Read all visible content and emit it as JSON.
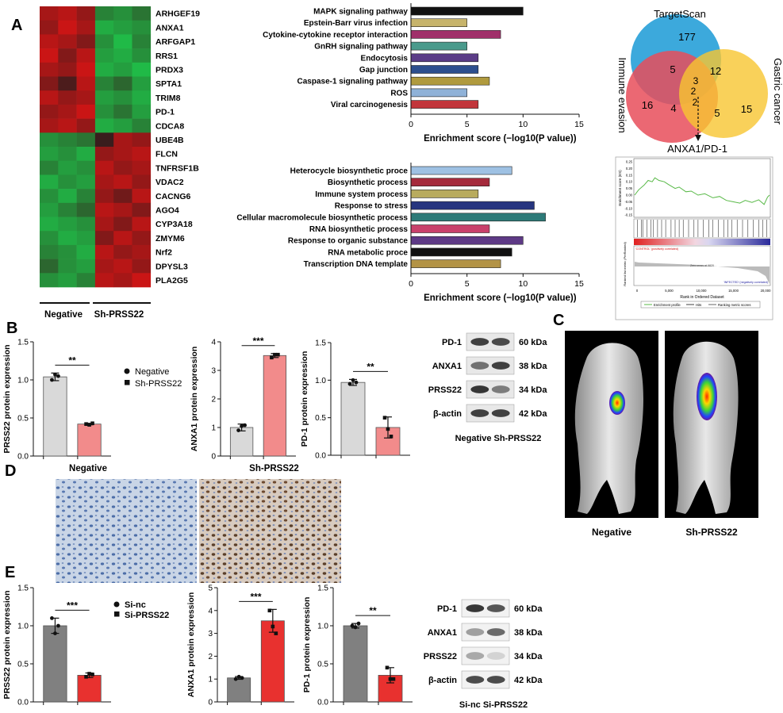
{
  "panel_letters": {
    "a": "A",
    "b": "B",
    "c": "C",
    "d": "D",
    "e": "E"
  },
  "colors": {
    "heat_red": "#d1242f",
    "heat_green": "#2e9e47",
    "venn_blue": "#1a9ad6",
    "venn_red": "#e84e5a",
    "venn_yellow": "#f7c531",
    "gsea_green": "#58b947",
    "bar_gray": "#d9d9d9",
    "bar_pink": "#f28b8b",
    "bar_dgray": "#808080",
    "bar_red": "#e8312f"
  },
  "heatmap": {
    "genes": [
      "ARHGEF19",
      "ANXA1",
      "ARFGAP1",
      "RRS1",
      "PRDX3",
      "SPTA1",
      "TRIM8",
      "PD-1",
      "CDCA8",
      "UBE4B",
      "FLCN",
      "TNFRSF1B",
      "VDAC2",
      "CACNG6",
      "AGO4",
      "CYP3A18",
      "ZMYM6",
      "Nrf2",
      "DPYSL3",
      "PLA2G5"
    ],
    "group_negative": "Negative",
    "group_sh": "Sh-PRSS22",
    "values": [
      [
        0.7,
        0.8,
        0.6,
        -0.5,
        -0.6,
        -0.4
      ],
      [
        0.6,
        0.9,
        0.7,
        -0.8,
        -0.7,
        -0.6
      ],
      [
        0.8,
        0.7,
        0.5,
        -0.6,
        -0.9,
        -0.5
      ],
      [
        0.9,
        0.5,
        0.8,
        -0.7,
        -0.8,
        -0.6
      ],
      [
        0.7,
        0.6,
        0.9,
        -0.8,
        -0.7,
        -0.9
      ],
      [
        0.5,
        0.2,
        0.8,
        -0.5,
        -0.3,
        -0.7
      ],
      [
        0.8,
        0.6,
        0.7,
        -0.7,
        -0.6,
        -0.8
      ],
      [
        0.6,
        0.7,
        0.9,
        -0.6,
        -0.4,
        -0.7
      ],
      [
        0.7,
        0.8,
        0.6,
        -0.8,
        -0.7,
        -0.5
      ],
      [
        -0.6,
        -0.5,
        -0.4,
        0.1,
        0.7,
        0.6
      ],
      [
        -0.7,
        -0.6,
        -0.8,
        0.6,
        0.7,
        0.8
      ],
      [
        -0.5,
        -0.7,
        -0.6,
        0.8,
        0.6,
        0.7
      ],
      [
        -0.8,
        -0.6,
        -0.7,
        0.7,
        0.8,
        0.6
      ],
      [
        -0.6,
        -0.8,
        -0.5,
        0.6,
        0.4,
        0.8
      ],
      [
        -0.7,
        -0.5,
        -0.3,
        0.8,
        0.7,
        0.5
      ],
      [
        -0.8,
        -0.7,
        -0.6,
        0.7,
        0.5,
        0.8
      ],
      [
        -0.6,
        -0.8,
        -0.7,
        0.5,
        0.8,
        0.6
      ],
      [
        -0.5,
        -0.6,
        -0.8,
        0.8,
        0.6,
        0.7
      ],
      [
        -0.3,
        -0.6,
        -0.7,
        0.7,
        0.8,
        0.6
      ],
      [
        -0.6,
        -0.7,
        -0.5,
        0.8,
        0.7,
        0.9
      ]
    ]
  },
  "venn": {
    "sets": [
      "TargetScan",
      "Immune evasion",
      "Gastric cancer"
    ],
    "counts": {
      "targetscan_only": "177",
      "immune_only_a": "16",
      "immune_only_b": "4",
      "gastric_only_a": "5",
      "gastric_only_b": "15",
      "ts_immune": "5",
      "ts_gastric": "12",
      "center_a": "3",
      "center_b": "2",
      "center_c": "2"
    },
    "result": "ANXA1/PD-1"
  },
  "gsea": {
    "ylabel": "Enrichment score (ES)",
    "yticks": [
      "0.25",
      "0.20",
      "0.15",
      "0.10",
      "0.05",
      "0.00",
      "-0.05",
      "-0.10",
      "-0.15"
    ],
    "rank_ylabel": "Ranked list metric (PreRanked)",
    "pos_label": "'CONTROL' (positively correlated)",
    "neg_label": "'INFECTED' (negatively correlated)",
    "zero_cross": "Zero cross at 9820",
    "xticks": [
      "0",
      "5,000",
      "10,000",
      "15,000",
      "20,000"
    ],
    "xlabel": "Rank in Ordered Dataset",
    "legend": [
      "Enrichment profile",
      "Hits",
      "Ranking metric scores"
    ]
  },
  "chart_data": [
    {
      "id": "kegg",
      "type": "bar",
      "orientation": "horizontal",
      "categories": [
        "MAPK signaling pathway",
        "Epstein-Barr virus infection",
        "Cytokine-cytokine receptor interaction",
        "GnRH signaling pathway",
        "Endocytosis",
        "Gap junction",
        "Caspase-1 signaling pathway",
        "ROS",
        "Viral carcinogenesis"
      ],
      "values": [
        10,
        5,
        8,
        5,
        6,
        6,
        7,
        5,
        6
      ],
      "colors": [
        "#111111",
        "#c7b46b",
        "#a0306a",
        "#4a9a8c",
        "#5b3c87",
        "#2d4f8e",
        "#b09a3e",
        "#8fb2d8",
        "#c2353b"
      ],
      "xlabel": "Enrichment score (−log10(P value))",
      "xlim": [
        0,
        15
      ],
      "xticks": [
        "0",
        "5",
        "10",
        "15"
      ]
    },
    {
      "id": "go",
      "type": "bar",
      "orientation": "horizontal",
      "categories": [
        "Heterocycle biosynthetic proce",
        "Biosynthetic process",
        "Immune system process",
        "Response to stress",
        "Cellular macromolecule biosynthetic process",
        "RNA biosynthetic process",
        "Response to organic substance",
        "RNA metabolic proce",
        "Transcription DNA template"
      ],
      "values": [
        9,
        7,
        6,
        11,
        12,
        7,
        10,
        9,
        8
      ],
      "colors": [
        "#9ec1e3",
        "#a52a3c",
        "#b8ab5e",
        "#26357f",
        "#2d7a78",
        "#c9416b",
        "#5e3a86",
        "#111111",
        "#b39345"
      ],
      "xlabel": "Enrichment score (−log10(P value))",
      "xlim": [
        0,
        15
      ],
      "xticks": [
        "0",
        "5",
        "10",
        "15"
      ]
    },
    {
      "id": "b1",
      "type": "bar",
      "categories": [
        "Negative",
        "Sh-PRSS22"
      ],
      "values": [
        1.04,
        0.42
      ],
      "errors": [
        0.05,
        0.01
      ],
      "points": [
        [
          1.0,
          1.07,
          1.05
        ],
        [
          0.42,
          0.41,
          0.43
        ]
      ],
      "ylabel": "PRSS22 protein expression",
      "ylim": [
        0,
        1.5
      ],
      "yticks": [
        "0.0",
        "0.5",
        "1.0",
        "1.5"
      ],
      "sig": "**",
      "xlabel": "Negative",
      "colors": [
        "#d9d9d9",
        "#f28b8b"
      ],
      "markers": [
        "circle",
        "square"
      ]
    },
    {
      "id": "b2",
      "type": "bar",
      "categories": [
        "Negative",
        "Sh-PRSS22"
      ],
      "values": [
        1.0,
        3.52
      ],
      "errors": [
        0.12,
        0.07
      ],
      "points": [
        [
          0.9,
          1.05,
          1.08
        ],
        [
          3.45,
          3.55,
          3.55
        ]
      ],
      "ylabel": "ANXA1 protein expression",
      "ylim": [
        0,
        4
      ],
      "yticks": [
        "0",
        "1",
        "2",
        "3",
        "4"
      ],
      "sig": "***",
      "xlabel": "Sh-PRSS22",
      "colors": [
        "#d9d9d9",
        "#f28b8b"
      ],
      "markers": [
        "circle",
        "square"
      ]
    },
    {
      "id": "b3",
      "type": "bar",
      "categories": [
        "Negative",
        "Sh-PRSS22"
      ],
      "values": [
        0.97,
        0.37
      ],
      "errors": [
        0.04,
        0.14
      ],
      "points": [
        [
          0.95,
          1.0,
          0.97
        ],
        [
          0.5,
          0.35,
          0.25
        ]
      ],
      "ylabel": "PD-1 protein expression",
      "ylim": [
        0,
        1.5
      ],
      "yticks": [
        "0.0",
        "0.5",
        "1.0",
        "1.5"
      ],
      "sig": "**",
      "colors": [
        "#d9d9d9",
        "#f28b8b"
      ],
      "markers": [
        "circle",
        "square"
      ]
    },
    {
      "id": "e1",
      "type": "bar",
      "categories": [
        "Si-nc",
        "Si-PRSS22"
      ],
      "values": [
        1.0,
        0.35
      ],
      "errors": [
        0.1,
        0.03
      ],
      "points": [
        [
          1.1,
          0.9,
          1.0
        ],
        [
          0.33,
          0.37,
          0.36
        ]
      ],
      "ylabel": "PRSS22 protein expression",
      "ylim": [
        0,
        1.5
      ],
      "yticks": [
        "0.0",
        "0.5",
        "1.0",
        "1.5"
      ],
      "sig": "***",
      "colors": [
        "#808080",
        "#e8312f"
      ],
      "markers": [
        "circle",
        "square"
      ]
    },
    {
      "id": "e2",
      "type": "bar",
      "categories": [
        "Si-nc",
        "Si-PRSS22"
      ],
      "values": [
        1.05,
        3.55
      ],
      "errors": [
        0.06,
        0.5
      ],
      "points": [
        [
          1.0,
          1.1,
          1.05
        ],
        [
          4.0,
          3.3,
          3.0
        ]
      ],
      "ylabel": "ANXA1 protein expression",
      "ylim": [
        0,
        5
      ],
      "yticks": [
        "0",
        "1",
        "2",
        "3",
        "4",
        "5"
      ],
      "sig": "***",
      "colors": [
        "#808080",
        "#e8312f"
      ],
      "markers": [
        "circle",
        "square"
      ]
    },
    {
      "id": "e3",
      "type": "bar",
      "categories": [
        "Si-nc",
        "Si-PRSS22"
      ],
      "values": [
        1.0,
        0.35
      ],
      "errors": [
        0.03,
        0.1
      ],
      "points": [
        [
          1.0,
          0.98,
          1.03
        ],
        [
          0.45,
          0.3,
          0.3
        ]
      ],
      "ylabel": "PD-1 protein expression",
      "ylim": [
        0,
        1.5
      ],
      "yticks": [
        "0.0",
        "0.5",
        "1.0",
        "1.5"
      ],
      "sig": "**",
      "colors": [
        "#808080",
        "#e8312f"
      ],
      "markers": [
        "circle",
        "square"
      ]
    }
  ],
  "legend_b": [
    "Negative",
    "Sh-PRSS22"
  ],
  "legend_e": [
    "Si-nc",
    "Si-PRSS22"
  ],
  "blot_b": {
    "rows": [
      "PD-1",
      "ANXA1",
      "PRSS22",
      "β-actin"
    ],
    "kda": [
      "60 kDa",
      "38 kDa",
      "34 kDa",
      "42 kDa"
    ],
    "caption": "Negative Sh-PRSS22"
  },
  "blot_e": {
    "rows": [
      "PD-1",
      "ANXA1",
      "PRSS22",
      "β-actin"
    ],
    "kda": [
      "60 kDa",
      "38 kDa",
      "34 kDa",
      "42 kDa"
    ],
    "caption": "Si-nc Si-PRSS22"
  },
  "mice": {
    "left": "Negative",
    "right": "Sh-PRSS22"
  }
}
